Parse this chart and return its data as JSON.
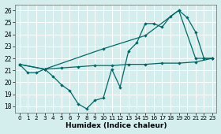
{
  "xlabel": "Humidex (Indice chaleur)",
  "background_color": "#d4eded",
  "grid_color": "#ffffff",
  "line_color": "#006868",
  "xlim": [
    -0.5,
    23.5
  ],
  "ylim": [
    17.5,
    26.5
  ],
  "yticks": [
    18,
    19,
    20,
    21,
    22,
    23,
    24,
    25,
    26
  ],
  "xticks": [
    0,
    1,
    2,
    3,
    4,
    5,
    6,
    7,
    8,
    9,
    10,
    11,
    12,
    13,
    14,
    15,
    16,
    17,
    18,
    19,
    20,
    21,
    22,
    23
  ],
  "line1_x": [
    0,
    3,
    10,
    15,
    19,
    21,
    22,
    23
  ],
  "line1_y": [
    21.5,
    21.1,
    22.8,
    23.9,
    26.0,
    22.0,
    22.0,
    22.0
  ],
  "line2_x": [
    0,
    1,
    2,
    3,
    4,
    5,
    6,
    7,
    8,
    9,
    10,
    11,
    12,
    13,
    14,
    15,
    16,
    17,
    18,
    19,
    20,
    21,
    22,
    23
  ],
  "line2_y": [
    21.5,
    20.8,
    20.8,
    21.1,
    20.5,
    19.8,
    19.3,
    18.2,
    17.8,
    18.5,
    18.7,
    21.1,
    19.6,
    22.6,
    23.3,
    24.9,
    24.9,
    24.6,
    25.5,
    26.0,
    25.4,
    24.2,
    22.0,
    22.0
  ],
  "line3_x": [
    0,
    3,
    5,
    7,
    9,
    11,
    13,
    15,
    17,
    19,
    21,
    23
  ],
  "line3_y": [
    21.5,
    21.1,
    21.2,
    21.3,
    21.4,
    21.4,
    21.5,
    21.5,
    21.6,
    21.6,
    21.7,
    22.0
  ]
}
